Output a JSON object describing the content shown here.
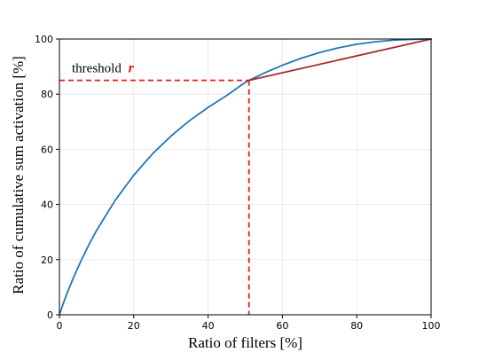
{
  "chart_data": {
    "type": "line",
    "title": "",
    "xlabel": "Ratio of filters [%]",
    "ylabel": "Ratio of cumulative sum activation [%]",
    "xlim": [
      0,
      100
    ],
    "ylim": [
      0,
      100
    ],
    "xticks": [
      "0",
      "20",
      "40",
      "60",
      "80",
      "100"
    ],
    "yticks": [
      "0",
      "20",
      "40",
      "60",
      "80",
      "100"
    ],
    "grid": true,
    "series": [
      {
        "color": "#1f77b4",
        "x": [
          0,
          1,
          2,
          4,
          6,
          8,
          10,
          15,
          20,
          25,
          30,
          35,
          40,
          45,
          50,
          51,
          55,
          60,
          65,
          70,
          75,
          80,
          85,
          90,
          95,
          100
        ],
        "y": [
          0,
          4.0,
          7.6,
          14.2,
          20.1,
          25.6,
          30.6,
          41.5,
          50.6,
          58.3,
          64.8,
          70.4,
          75.2,
          79.5,
          84.3,
          85,
          87.6,
          90.5,
          93.0,
          95.1,
          96.8,
          98.1,
          99.0,
          99.6,
          99.9,
          100
        ]
      },
      {
        "color": "#a8282f",
        "x": [
          51,
          100
        ],
        "y": [
          85,
          100
        ]
      }
    ],
    "threshold": {
      "x": 51,
      "y": 85,
      "color": "#e41a1c",
      "label_text": "threshold",
      "label_var": "r"
    }
  }
}
